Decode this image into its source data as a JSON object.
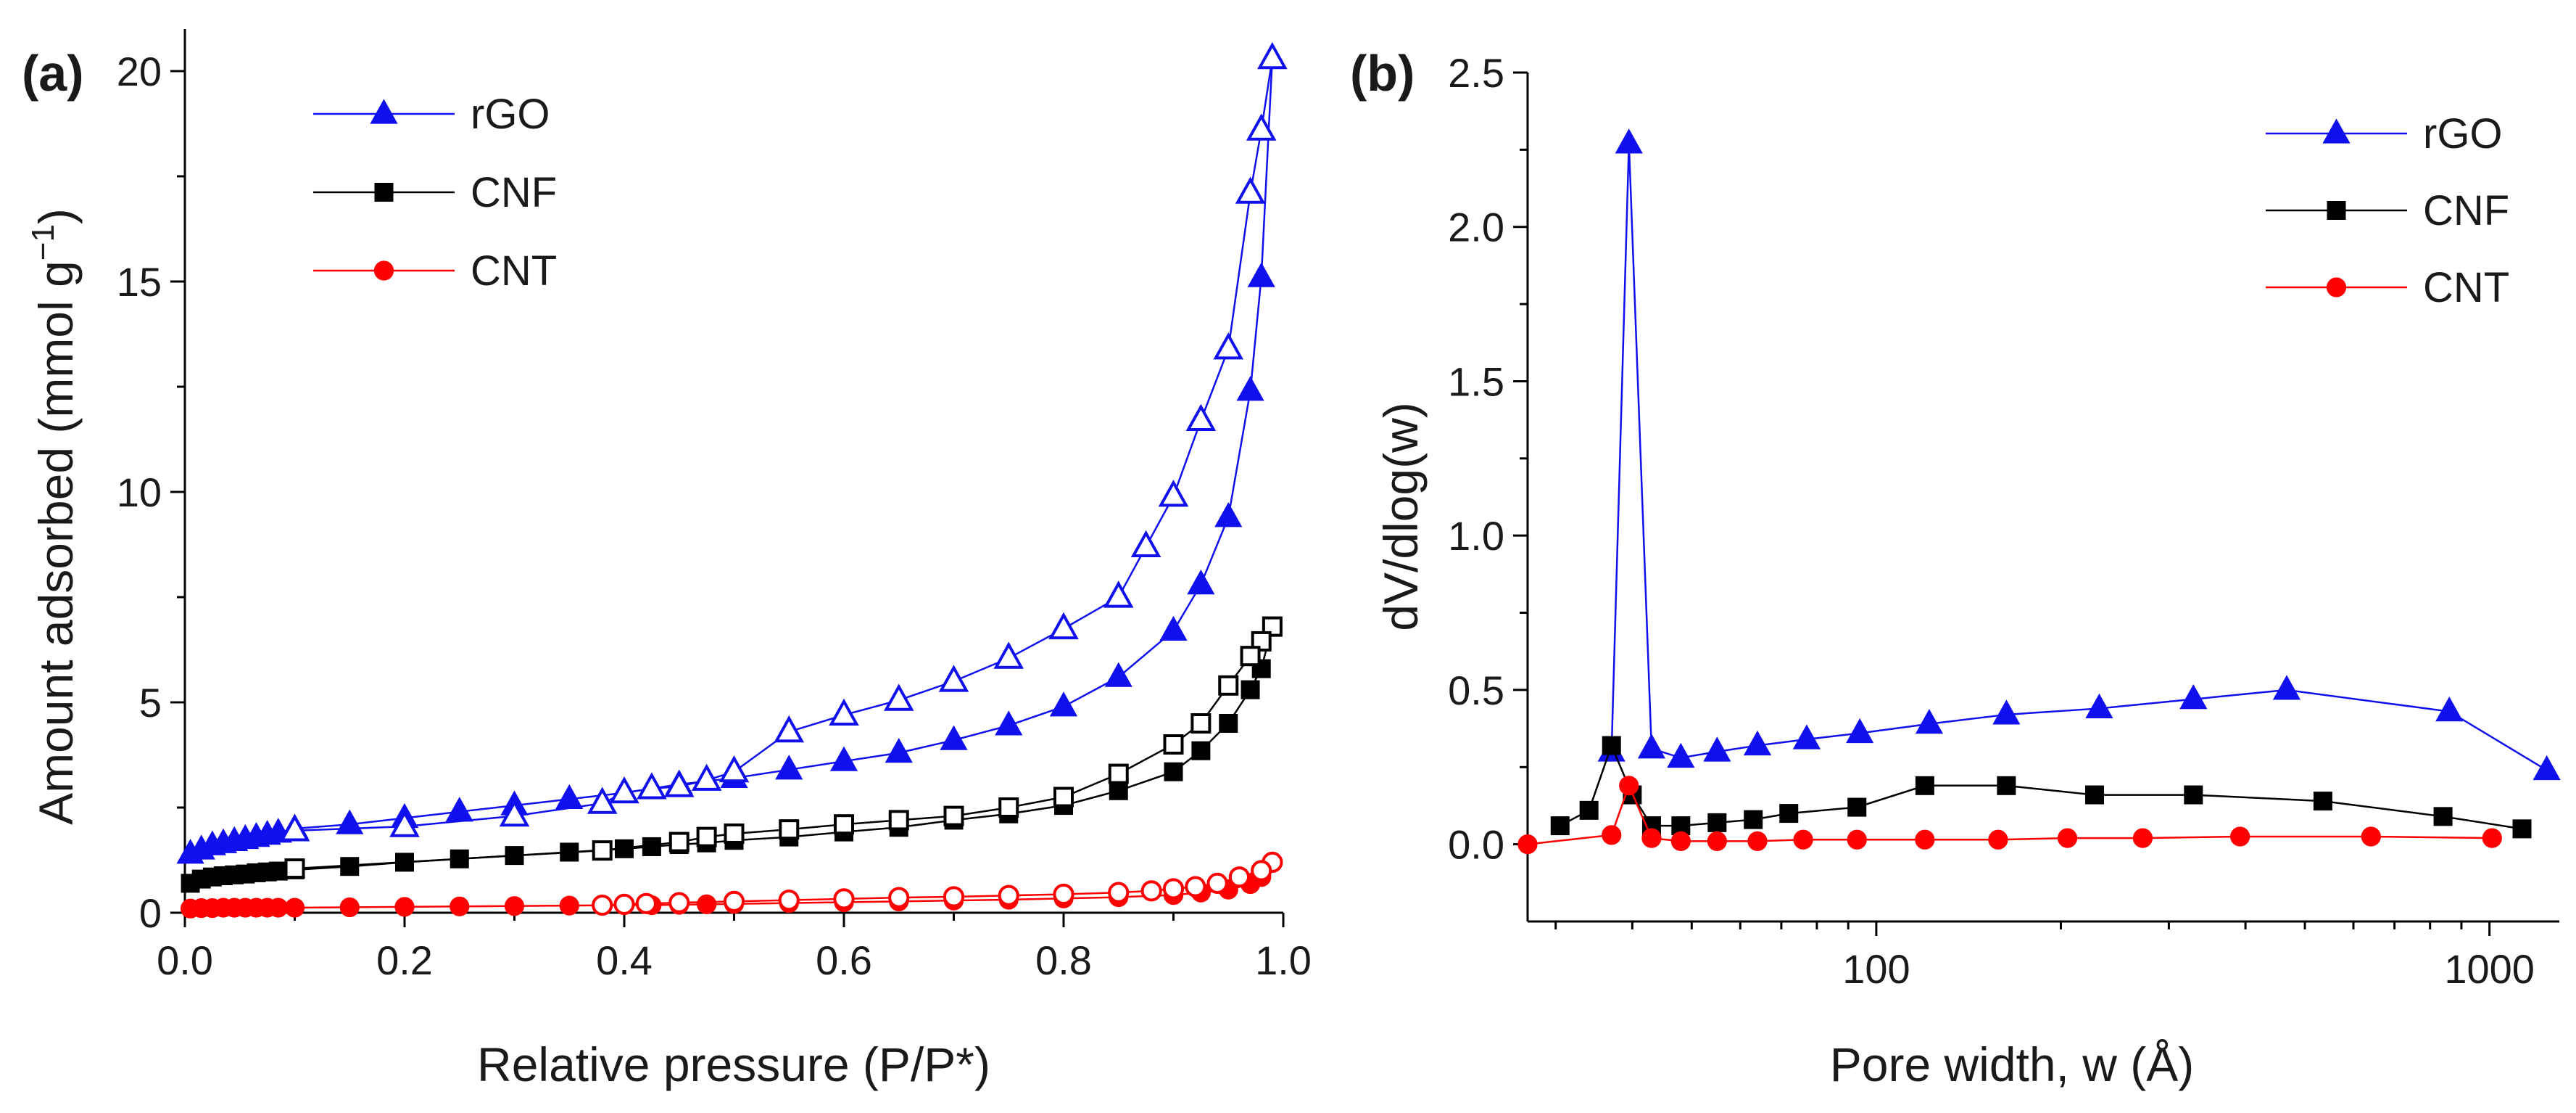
{
  "colors": {
    "rGO": "#1010ee",
    "CNF": "#000000",
    "CNT": "#ff0000"
  },
  "chart_data": [
    {
      "type": "line",
      "panel_label": "(a)",
      "title": "",
      "xlabel": "Relative pressure (P/P*)",
      "ylabel_main": "Amount adsorbed (mmol g",
      "ylabel_sup": "−1",
      "ylabel_end": ")",
      "xlim": [
        0,
        1.0
      ],
      "ylim": [
        0,
        21
      ],
      "x_scale": "linear",
      "xticks": [
        0.0,
        0.2,
        0.4,
        0.6,
        0.8,
        1.0
      ],
      "xtick_labels": [
        "0.0",
        "0.2",
        "0.4",
        "0.6",
        "0.8",
        "1.0"
      ],
      "yticks": [
        0,
        5,
        10,
        15,
        20
      ],
      "ytick_labels": [
        "0",
        "5",
        "10",
        "15",
        "20"
      ],
      "grid": false,
      "legend_position": "top-left",
      "series": [
        {
          "name": "rGO",
          "branch": "adsorption",
          "marker": "triangle",
          "filled": true,
          "x": [
            0.005,
            0.015,
            0.025,
            0.035,
            0.045,
            0.055,
            0.065,
            0.075,
            0.085,
            0.1,
            0.15,
            0.2,
            0.25,
            0.3,
            0.35,
            0.4,
            0.45,
            0.5,
            0.55,
            0.6,
            0.65,
            0.7,
            0.75,
            0.8,
            0.85,
            0.9,
            0.925,
            0.95,
            0.97,
            0.98,
            0.99
          ],
          "y": [
            1.4,
            1.5,
            1.6,
            1.65,
            1.7,
            1.75,
            1.8,
            1.85,
            1.9,
            2.0,
            2.1,
            2.25,
            2.4,
            2.55,
            2.7,
            2.85,
            3.05,
            3.2,
            3.4,
            3.6,
            3.8,
            4.1,
            4.45,
            4.9,
            5.6,
            6.7,
            7.8,
            9.4,
            12.4,
            15.1,
            20.3
          ]
        },
        {
          "name": "rGO",
          "branch": "desorption",
          "marker": "triangle",
          "filled": false,
          "x": [
            0.99,
            0.98,
            0.97,
            0.95,
            0.925,
            0.9,
            0.875,
            0.85,
            0.8,
            0.75,
            0.7,
            0.65,
            0.6,
            0.55,
            0.5,
            0.475,
            0.45,
            0.425,
            0.4,
            0.38,
            0.3,
            0.2,
            0.1
          ],
          "y": [
            20.3,
            18.6,
            17.1,
            13.4,
            11.7,
            9.9,
            8.7,
            7.5,
            6.75,
            6.05,
            5.5,
            5.05,
            4.7,
            4.3,
            3.35,
            3.15,
            3.0,
            2.95,
            2.85,
            2.6,
            2.3,
            2.05,
            1.95
          ]
        },
        {
          "name": "CNF",
          "branch": "adsorption",
          "marker": "square",
          "filled": true,
          "x": [
            0.005,
            0.015,
            0.025,
            0.035,
            0.045,
            0.055,
            0.065,
            0.075,
            0.085,
            0.1,
            0.15,
            0.2,
            0.25,
            0.3,
            0.35,
            0.4,
            0.425,
            0.45,
            0.475,
            0.5,
            0.55,
            0.6,
            0.65,
            0.7,
            0.75,
            0.8,
            0.85,
            0.9,
            0.925,
            0.95,
            0.97,
            0.98,
            0.99
          ],
          "y": [
            0.7,
            0.8,
            0.85,
            0.88,
            0.9,
            0.92,
            0.95,
            0.97,
            0.99,
            1.02,
            1.1,
            1.2,
            1.28,
            1.36,
            1.44,
            1.52,
            1.57,
            1.62,
            1.66,
            1.72,
            1.8,
            1.92,
            2.03,
            2.2,
            2.35,
            2.55,
            2.9,
            3.35,
            3.85,
            4.5,
            5.3,
            5.8,
            6.8
          ]
        },
        {
          "name": "CNF",
          "branch": "desorption",
          "marker": "square",
          "filled": false,
          "x": [
            0.99,
            0.98,
            0.97,
            0.95,
            0.925,
            0.9,
            0.85,
            0.8,
            0.75,
            0.7,
            0.65,
            0.6,
            0.55,
            0.5,
            0.475,
            0.45,
            0.38,
            0.1
          ],
          "y": [
            6.8,
            6.45,
            6.1,
            5.4,
            4.5,
            4.0,
            3.3,
            2.75,
            2.5,
            2.3,
            2.2,
            2.1,
            1.98,
            1.88,
            1.8,
            1.68,
            1.48,
            1.05
          ]
        },
        {
          "name": "CNT",
          "branch": "adsorption",
          "marker": "circle",
          "filled": true,
          "x": [
            0.005,
            0.015,
            0.025,
            0.035,
            0.045,
            0.055,
            0.065,
            0.075,
            0.085,
            0.1,
            0.15,
            0.2,
            0.25,
            0.3,
            0.35,
            0.4,
            0.425,
            0.45,
            0.475,
            0.5,
            0.55,
            0.6,
            0.65,
            0.7,
            0.75,
            0.8,
            0.85,
            0.9,
            0.925,
            0.95,
            0.97,
            0.98,
            0.99
          ],
          "y": [
            0.1,
            0.11,
            0.11,
            0.12,
            0.12,
            0.12,
            0.12,
            0.12,
            0.12,
            0.12,
            0.13,
            0.14,
            0.15,
            0.16,
            0.17,
            0.18,
            0.18,
            0.19,
            0.2,
            0.21,
            0.23,
            0.25,
            0.27,
            0.29,
            0.31,
            0.34,
            0.37,
            0.42,
            0.48,
            0.55,
            0.68,
            0.85,
            1.2
          ]
        },
        {
          "name": "CNT",
          "branch": "desorption",
          "marker": "circle",
          "filled": false,
          "x": [
            0.99,
            0.98,
            0.96,
            0.94,
            0.92,
            0.9,
            0.88,
            0.85,
            0.8,
            0.75,
            0.7,
            0.65,
            0.6,
            0.55,
            0.5,
            0.45,
            0.42,
            0.4,
            0.38
          ],
          "y": [
            1.2,
            1.0,
            0.85,
            0.7,
            0.62,
            0.57,
            0.52,
            0.48,
            0.44,
            0.41,
            0.38,
            0.36,
            0.33,
            0.3,
            0.27,
            0.24,
            0.22,
            0.2,
            0.18
          ]
        }
      ]
    },
    {
      "type": "line",
      "panel_label": "(b)",
      "title": "",
      "xlabel": "Pore width, w (Å)",
      "ylabel": "dV/dlog(w)",
      "x_scale": "log",
      "xlim": [
        27,
        1300
      ],
      "ylim": [
        -0.25,
        2.5
      ],
      "xticks": [
        100,
        1000
      ],
      "xtick_labels": [
        "100",
        "1000"
      ],
      "xminor": [
        30,
        40,
        50,
        60,
        70,
        80,
        90,
        200,
        300,
        400,
        500,
        600,
        700,
        800,
        900
      ],
      "yticks": [
        0.0,
        0.5,
        1.0,
        1.5,
        2.0,
        2.5
      ],
      "ytick_labels": [
        "0.0",
        "0.5",
        "1.0",
        "1.5",
        "2.0",
        "2.5"
      ],
      "grid": false,
      "legend_position": "top-right",
      "series": [
        {
          "name": "rGO",
          "marker": "triangle",
          "filled": true,
          "x": [
            37,
            39.5,
            43,
            48,
            55,
            64,
            77,
            94,
            122,
            163,
            231,
            329,
            467,
            860,
            1240
          ],
          "y": [
            0.3,
            2.27,
            0.31,
            0.28,
            0.3,
            0.32,
            0.34,
            0.36,
            0.39,
            0.42,
            0.44,
            0.47,
            0.5,
            0.43,
            0.24
          ]
        },
        {
          "name": "CNF",
          "marker": "square",
          "filled": true,
          "x": [
            30.5,
            34,
            37,
            40,
            43,
            48,
            55,
            63,
            72,
            93,
            120,
            163,
            227,
            329,
            535,
            840,
            1130
          ],
          "y": [
            0.06,
            0.11,
            0.32,
            0.16,
            0.06,
            0.06,
            0.07,
            0.08,
            0.1,
            0.12,
            0.19,
            0.19,
            0.16,
            0.16,
            0.14,
            0.09,
            0.05
          ]
        },
        {
          "name": "CNT",
          "marker": "circle",
          "filled": true,
          "x": [
            27,
            37,
            39.5,
            43,
            48,
            55,
            64,
            76,
            93,
            120,
            158,
            205,
            272,
            392,
            641,
            1010
          ],
          "y": [
            0.0,
            0.03,
            0.19,
            0.02,
            0.01,
            0.01,
            0.01,
            0.015,
            0.015,
            0.015,
            0.015,
            0.02,
            0.02,
            0.025,
            0.025,
            0.02
          ]
        }
      ]
    }
  ]
}
